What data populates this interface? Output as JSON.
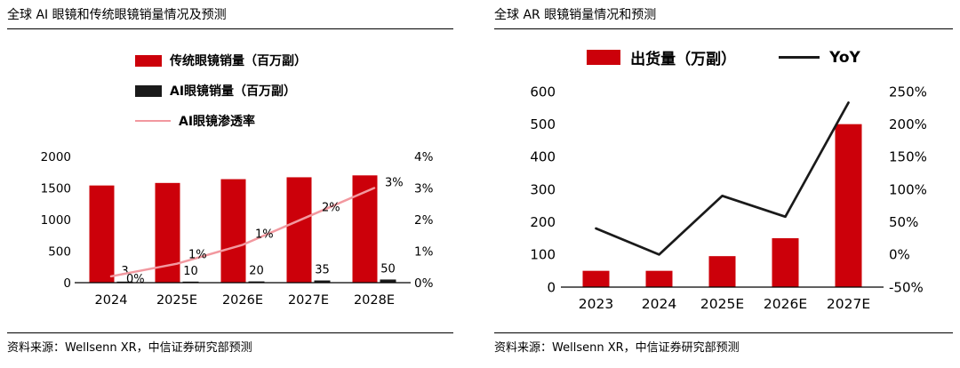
{
  "panels": [
    {
      "title": "全球 AI 眼镜和传统眼镜销量情况及预测",
      "source": "资料来源：Wellsenn XR，中信证券研究部预测"
    },
    {
      "title": "全球 AR 眼镜销量情况和预测",
      "source": "资料来源：Wellsenn XR，中信证券研究部预测"
    }
  ],
  "colors": {
    "red": "#cc000a",
    "black": "#1a1a1a",
    "pink": "#f2989f",
    "text": "#000000"
  },
  "chart_data": [
    {
      "type": "bar",
      "title": "全球 AI 眼镜和传统眼镜销量情况及预测",
      "categories": [
        "2024",
        "2025E",
        "2026E",
        "2027E",
        "2028E"
      ],
      "series": [
        {
          "name": "传统眼镜销量（百万副）",
          "kind": "bar",
          "axis": "left",
          "color": "#cc000a",
          "values": [
            1540,
            1580,
            1640,
            1670,
            1700
          ]
        },
        {
          "name": "AI眼镜销量（百万副）",
          "kind": "bar",
          "axis": "left",
          "color": "#1a1a1a",
          "values": [
            3,
            10,
            20,
            35,
            50
          ],
          "labels": [
            "3",
            "10",
            "20",
            "35",
            "50"
          ]
        },
        {
          "name": "AI眼镜渗透率",
          "kind": "line",
          "axis": "right",
          "color": "#f2989f",
          "values": [
            0.2,
            0.6,
            1.2,
            2.1,
            3.0
          ],
          "labels": [
            "0%",
            "1%",
            "1%",
            "2%",
            "3%"
          ]
        }
      ],
      "left_axis": {
        "min": 0,
        "max": 2000,
        "ticks": [
          0,
          500,
          1000,
          1500,
          2000
        ],
        "labels": [
          "0",
          "500",
          "1000",
          "1500",
          "2000"
        ]
      },
      "right_axis": {
        "min": 0,
        "max": 4,
        "ticks": [
          0,
          1,
          2,
          3,
          4
        ],
        "labels": [
          "0%",
          "1%",
          "2%",
          "3%",
          "4%"
        ]
      },
      "grid": false,
      "legend_position": "top-left-stacked"
    },
    {
      "type": "bar",
      "title": "全球 AR 眼镜销量情况和预测",
      "categories": [
        "2023",
        "2024",
        "2025E",
        "2026E",
        "2027E"
      ],
      "series": [
        {
          "name": "出货量（万副）",
          "kind": "bar",
          "axis": "left",
          "color": "#cc000a",
          "values": [
            50,
            50,
            95,
            150,
            500
          ]
        },
        {
          "name": "YoY",
          "kind": "line",
          "axis": "right",
          "color": "#1a1a1a",
          "values": [
            40,
            0,
            90,
            58,
            233
          ]
        }
      ],
      "left_axis": {
        "min": 0,
        "max": 600,
        "ticks": [
          0,
          100,
          200,
          300,
          400,
          500,
          600
        ],
        "labels": [
          "0",
          "100",
          "200",
          "300",
          "400",
          "500",
          "600"
        ]
      },
      "right_axis": {
        "min": -50,
        "max": 250,
        "ticks": [
          -50,
          0,
          50,
          100,
          150,
          200,
          250
        ],
        "labels": [
          "-50%",
          "0%",
          "50%",
          "100%",
          "150%",
          "200%",
          "250%"
        ]
      },
      "grid": false,
      "legend_position": "top-center-row"
    }
  ]
}
